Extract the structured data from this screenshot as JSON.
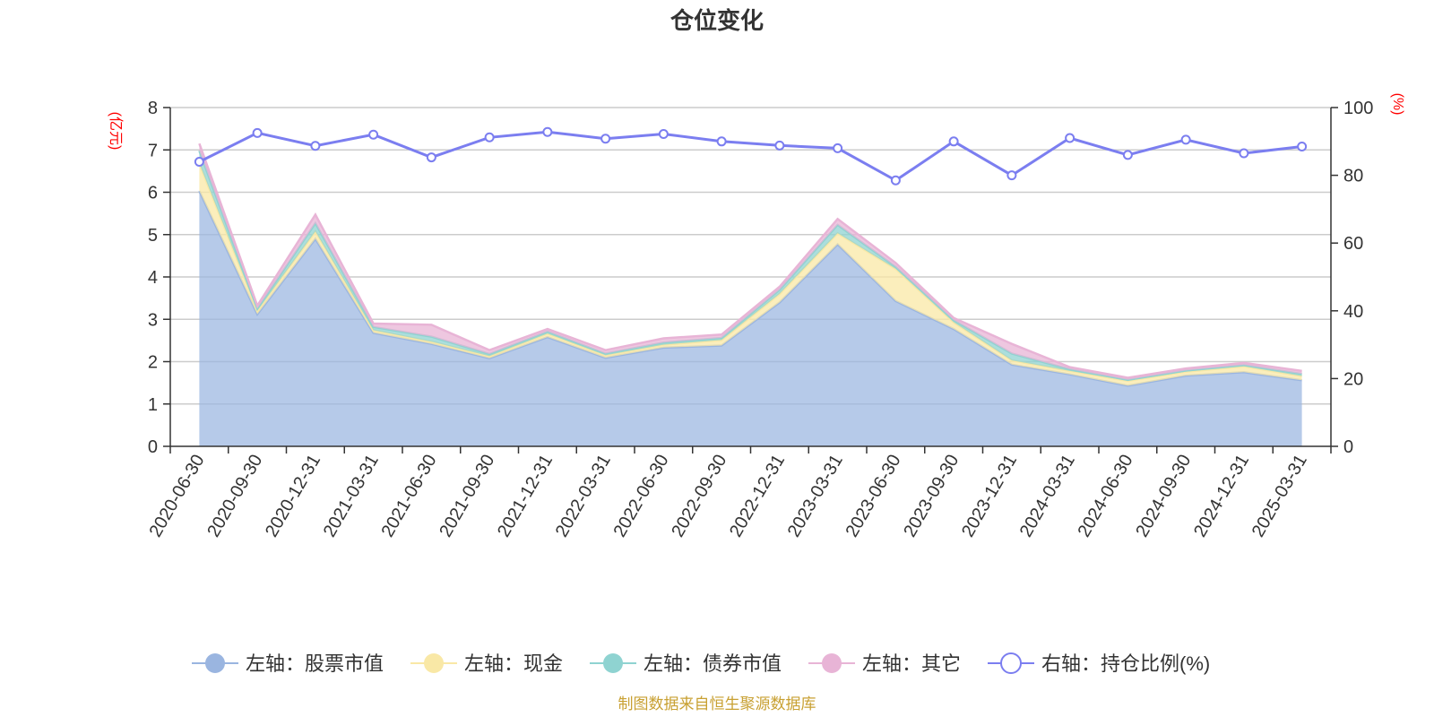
{
  "title": "仓位变化",
  "source": "制图数据来自恒生聚源数据库",
  "axes": {
    "left_unit": "(亿元)",
    "right_unit": "(%)"
  },
  "colors": {
    "stock": "#9ab5e0",
    "cash": "#f9e8a6",
    "bond": "#8fd3d1",
    "other": "#e8b4d6",
    "ratio": "#7b7ef0",
    "source_text": "#c8a032",
    "unit_text": "#ff0000"
  },
  "legend": [
    {
      "key": "stock",
      "label": "左轴：股票市值",
      "marker": "filled-circle"
    },
    {
      "key": "cash",
      "label": "左轴：现金",
      "marker": "filled-circle"
    },
    {
      "key": "bond",
      "label": "左轴：债券市值",
      "marker": "filled-circle"
    },
    {
      "key": "other",
      "label": "左轴：其它",
      "marker": "filled-circle"
    },
    {
      "key": "ratio",
      "label": "右轴：持仓比例(%)",
      "marker": "hollow-circle"
    }
  ],
  "chart_data": {
    "type": "area",
    "stacked": true,
    "categories": [
      "2020-06-30",
      "2020-09-30",
      "2020-12-31",
      "2021-03-31",
      "2021-06-30",
      "2021-09-30",
      "2021-12-31",
      "2022-03-31",
      "2022-06-30",
      "2022-09-30",
      "2022-12-31",
      "2023-03-31",
      "2023-06-30",
      "2023-09-30",
      "2023-12-31",
      "2024-03-31",
      "2024-06-30",
      "2024-09-30",
      "2024-12-31",
      "2025-03-31"
    ],
    "y_left": {
      "min": 0,
      "max": 8,
      "ticks": [
        0,
        1,
        2,
        3,
        4,
        5,
        6,
        7,
        8
      ]
    },
    "y_right": {
      "min": 0,
      "max": 100,
      "ticks": [
        0,
        20,
        40,
        60,
        80,
        100
      ]
    },
    "grid": true,
    "legend_position": "bottom",
    "series": [
      {
        "key": "stock",
        "axis": "left",
        "values": [
          6.03,
          3.12,
          4.9,
          2.68,
          2.42,
          2.08,
          2.58,
          2.09,
          2.33,
          2.38,
          3.4,
          4.77,
          3.43,
          2.77,
          1.93,
          1.7,
          1.43,
          1.67,
          1.75,
          1.56
        ]
      },
      {
        "key": "cash",
        "axis": "left",
        "values": [
          0.65,
          0.08,
          0.17,
          0.06,
          0.05,
          0.05,
          0.08,
          0.06,
          0.07,
          0.13,
          0.2,
          0.26,
          0.76,
          0.16,
          0.1,
          0.08,
          0.12,
          0.09,
          0.14,
          0.1
        ]
      },
      {
        "key": "bond",
        "axis": "left",
        "values": [
          0.3,
          0.05,
          0.2,
          0.08,
          0.12,
          0.05,
          0.05,
          0.04,
          0.05,
          0.05,
          0.1,
          0.2,
          0.05,
          0.05,
          0.16,
          0.04,
          0.02,
          0.03,
          0.03,
          0.05
        ]
      },
      {
        "key": "other",
        "axis": "left",
        "values": [
          0.17,
          0.07,
          0.2,
          0.08,
          0.28,
          0.09,
          0.06,
          0.08,
          0.1,
          0.08,
          0.07,
          0.14,
          0.09,
          0.05,
          0.23,
          0.05,
          0.05,
          0.05,
          0.05,
          0.07
        ]
      },
      {
        "key": "ratio",
        "axis": "right",
        "type": "line",
        "values": [
          84.0,
          92.5,
          88.7,
          92.0,
          85.3,
          91.2,
          92.8,
          90.8,
          92.2,
          90.0,
          88.8,
          88.0,
          78.5,
          90.0,
          80.0,
          91.0,
          86.0,
          90.5,
          86.5,
          88.5
        ]
      }
    ]
  }
}
